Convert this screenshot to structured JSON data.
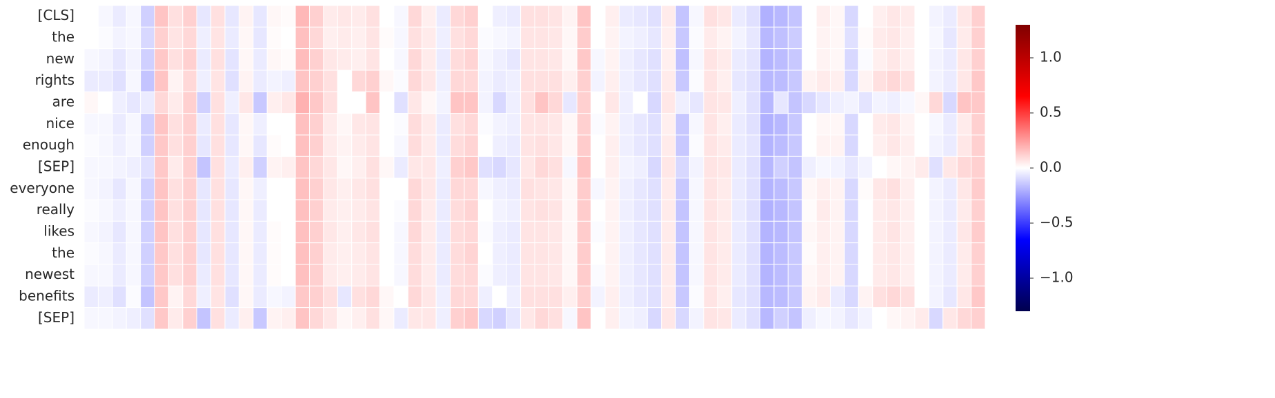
{
  "chart_data": {
    "type": "heatmap",
    "cmap": "seismic",
    "rows": [
      "[CLS]",
      "the",
      "new",
      "rights",
      "are",
      "nice",
      "enough",
      "[SEP]",
      "everyone",
      "really",
      "likes",
      "the",
      "newest",
      "benefits",
      "[SEP]"
    ],
    "values": [
      [
        0,
        -0.02,
        -0.05,
        -0.02,
        -0.12,
        0.15,
        0.08,
        0.12,
        -0.06,
        0.08,
        -0.06,
        0.03,
        -0.06,
        0.02,
        0.01,
        0.18,
        0.12,
        0.05,
        0.06,
        0.05,
        0.08,
        0,
        -0.02,
        0.1,
        0.04,
        -0.05,
        0.1,
        0.12,
        0,
        -0.04,
        -0.05,
        0.08,
        0.08,
        0.07,
        0.03,
        0.15,
        0,
        0.04,
        -0.05,
        -0.06,
        -0.08,
        0.05,
        -0.15,
        -0.02,
        0.08,
        0.06,
        -0.05,
        -0.08,
        -0.2,
        -0.18,
        -0.15,
        0,
        0.04,
        0.02,
        -0.1,
        0,
        0.04,
        0.06,
        0.05,
        0,
        -0.03,
        -0.05,
        0.06,
        0.12
      ],
      [
        0,
        -0.01,
        -0.03,
        -0.02,
        -0.1,
        0.12,
        0.07,
        0.1,
        -0.04,
        0.07,
        -0.05,
        0.02,
        -0.06,
        0.01,
        0,
        0.16,
        0.1,
        0.04,
        0.05,
        0.04,
        0.07,
        0.01,
        -0.02,
        0.08,
        0.05,
        -0.04,
        0.08,
        0.1,
        -0.01,
        -0.02,
        -0.03,
        0.07,
        0.07,
        0.06,
        0.02,
        0.13,
        0,
        0.03,
        -0.03,
        -0.04,
        -0.06,
        0.04,
        -0.14,
        -0.01,
        0.05,
        0.03,
        -0.03,
        -0.06,
        -0.18,
        -0.16,
        -0.13,
        0,
        0.03,
        0.02,
        -0.08,
        0.01,
        0.05,
        0.06,
        0.04,
        0,
        -0.02,
        -0.06,
        0.05,
        0.12
      ],
      [
        -0.02,
        -0.03,
        -0.06,
        -0.03,
        -0.12,
        0.14,
        0.08,
        0.12,
        -0.05,
        0.08,
        -0.07,
        0.02,
        -0.05,
        0.02,
        0.01,
        0.17,
        0.12,
        0.06,
        0.05,
        0.04,
        0.07,
        0,
        -0.02,
        0.1,
        0.05,
        -0.05,
        0.09,
        0.11,
        -0.02,
        -0.04,
        -0.06,
        0.07,
        0.07,
        0.06,
        0.02,
        0.14,
        -0.02,
        0.03,
        -0.04,
        -0.06,
        -0.08,
        0.04,
        -0.16,
        -0.02,
        0.07,
        0.05,
        -0.05,
        -0.07,
        -0.19,
        -0.17,
        -0.14,
        0,
        0.03,
        0.02,
        -0.1,
        -0.01,
        0.04,
        0.06,
        0.04,
        0,
        -0.03,
        -0.05,
        0.06,
        0.12
      ],
      [
        -0.05,
        -0.05,
        -0.08,
        -0.02,
        -0.15,
        0.15,
        0.03,
        0.1,
        -0.04,
        0.07,
        -0.08,
        0.03,
        -0.05,
        -0.03,
        -0.04,
        0.15,
        0.12,
        0.08,
        0,
        0.1,
        0.12,
        0.02,
        -0.01,
        0.1,
        0.06,
        -0.04,
        0.1,
        0.1,
        -0.03,
        -0.05,
        -0.04,
        0.08,
        0.08,
        0.08,
        0.04,
        0.12,
        -0.03,
        0.04,
        -0.04,
        -0.06,
        -0.08,
        0.05,
        -0.14,
        -0.01,
        0.07,
        0.04,
        -0.06,
        -0.08,
        -0.18,
        -0.17,
        -0.14,
        0.03,
        0.05,
        0.04,
        -0.1,
        0.03,
        0.08,
        0.1,
        0.08,
        0,
        -0.03,
        -0.05,
        0.06,
        0.14
      ],
      [
        0.02,
        0,
        -0.04,
        -0.06,
        -0.05,
        0.1,
        0.05,
        0.12,
        -0.12,
        0.08,
        -0.04,
        0.06,
        -0.14,
        0.04,
        0.06,
        0.2,
        0.14,
        0.08,
        0,
        0,
        0.15,
        0,
        -0.08,
        0.06,
        0.02,
        -0.03,
        0.15,
        0.15,
        -0.03,
        -0.1,
        -0.04,
        0.08,
        0.15,
        0.1,
        -0.06,
        0.12,
        0,
        0.06,
        -0.04,
        0,
        -0.1,
        0.06,
        -0.04,
        -0.06,
        0.07,
        0.06,
        -0.04,
        -0.08,
        -0.18,
        -0.06,
        -0.15,
        -0.1,
        -0.06,
        -0.04,
        -0.03,
        -0.07,
        -0.03,
        -0.04,
        -0.02,
        0.02,
        0.1,
        -0.1,
        0.15,
        0.14
      ],
      [
        -0.02,
        -0.02,
        -0.05,
        -0.02,
        -0.12,
        0.15,
        0.08,
        0.12,
        -0.05,
        0.08,
        -0.06,
        0.02,
        -0.04,
        0,
        0,
        0.16,
        0.12,
        0.05,
        0.02,
        0.06,
        0.07,
        0,
        -0.01,
        0.09,
        0.05,
        -0.05,
        0.08,
        0.1,
        -0.01,
        -0.03,
        -0.04,
        0.07,
        0.07,
        0.06,
        0.02,
        0.12,
        -0.01,
        0.03,
        -0.04,
        -0.06,
        -0.08,
        0.04,
        -0.14,
        -0.02,
        0.07,
        0.04,
        -0.05,
        -0.08,
        -0.2,
        -0.18,
        -0.14,
        0,
        0.02,
        0.02,
        -0.1,
        0,
        0.05,
        0.06,
        0.03,
        0,
        -0.02,
        -0.05,
        0.05,
        0.12
      ],
      [
        -0.01,
        -0.02,
        -0.04,
        -0.02,
        -0.12,
        0.14,
        0.08,
        0.12,
        -0.06,
        0.08,
        -0.06,
        0.02,
        -0.06,
        0.01,
        0,
        0.16,
        0.12,
        0.05,
        0.03,
        0.05,
        0.07,
        0,
        -0.02,
        0.09,
        0.05,
        -0.05,
        0.09,
        0.11,
        0,
        -0.04,
        -0.05,
        0.07,
        0.08,
        0.06,
        0.02,
        0.13,
        0,
        0.04,
        -0.04,
        -0.06,
        -0.08,
        0.05,
        -0.14,
        -0.01,
        0.07,
        0.05,
        -0.05,
        -0.07,
        -0.19,
        -0.17,
        -0.14,
        0,
        0.03,
        0.03,
        -0.1,
        0,
        0.04,
        0.06,
        0.04,
        0,
        -0.03,
        -0.05,
        0.06,
        0.12
      ],
      [
        -0.02,
        -0.02,
        -0.03,
        -0.04,
        -0.08,
        0.14,
        0.05,
        0.12,
        -0.15,
        0.08,
        -0.05,
        0.04,
        -0.12,
        0.03,
        0.04,
        0.15,
        0.1,
        0.06,
        0.02,
        0.04,
        0.08,
        0.02,
        -0.05,
        0.06,
        0.06,
        -0.04,
        0.12,
        0.14,
        -0.08,
        -0.1,
        -0.06,
        0.06,
        0.1,
        0.08,
        -0.02,
        0.15,
        0,
        0.04,
        -0.03,
        -0.04,
        -0.1,
        0.06,
        -0.1,
        -0.03,
        0.07,
        0.06,
        -0.05,
        -0.08,
        -0.18,
        -0.12,
        -0.15,
        -0.04,
        -0.02,
        -0.03,
        -0.06,
        -0.03,
        0,
        0.02,
        0.03,
        0.05,
        -0.08,
        0.06,
        0.1,
        0.12
      ],
      [
        -0.02,
        -0.03,
        -0.06,
        -0.02,
        -0.12,
        0.15,
        0.08,
        0.12,
        -0.06,
        0.08,
        -0.06,
        0.02,
        -0.04,
        0,
        0,
        0.16,
        0.12,
        0.06,
        0.04,
        0.06,
        0.08,
        0,
        0,
        0.1,
        0.06,
        -0.05,
        0.1,
        0.1,
        -0.02,
        -0.04,
        -0.05,
        0.08,
        0.07,
        0.06,
        0.02,
        0.13,
        -0.02,
        0.03,
        -0.04,
        -0.06,
        -0.08,
        0.05,
        -0.14,
        -0.02,
        0.07,
        0.05,
        -0.05,
        -0.08,
        -0.19,
        -0.17,
        -0.14,
        0.02,
        0.04,
        0.03,
        -0.1,
        0.01,
        0.06,
        0.08,
        0.04,
        0,
        -0.03,
        -0.05,
        0.06,
        0.13
      ],
      [
        -0.01,
        -0.02,
        -0.04,
        -0.02,
        -0.12,
        0.15,
        0.08,
        0.12,
        -0.06,
        0.08,
        -0.06,
        0.02,
        -0.05,
        0,
        0,
        0.16,
        0.12,
        0.05,
        0.04,
        0.05,
        0.07,
        0,
        -0.01,
        0.1,
        0.05,
        -0.05,
        0.09,
        0.11,
        0,
        -0.03,
        -0.04,
        0.07,
        0.08,
        0.07,
        0.02,
        0.13,
        0,
        0.03,
        -0.04,
        -0.06,
        -0.08,
        0.05,
        -0.15,
        -0.02,
        0.07,
        0.05,
        -0.05,
        -0.08,
        -0.2,
        -0.18,
        -0.15,
        0.01,
        0.05,
        0.03,
        -0.1,
        0,
        0.05,
        0.06,
        0.04,
        0,
        -0.03,
        -0.05,
        0.05,
        0.12
      ],
      [
        -0.02,
        -0.03,
        -0.06,
        -0.02,
        -0.12,
        0.15,
        0.08,
        0.12,
        -0.06,
        0.08,
        -0.06,
        0.02,
        -0.05,
        0.01,
        0,
        0.16,
        0.12,
        0.06,
        0.04,
        0.06,
        0.08,
        0,
        -0.02,
        0.1,
        0.05,
        -0.05,
        0.09,
        0.1,
        -0.01,
        -0.04,
        -0.05,
        0.07,
        0.07,
        0.06,
        0.02,
        0.13,
        -0.01,
        0.03,
        -0.04,
        -0.06,
        -0.08,
        0.05,
        -0.15,
        -0.02,
        0.07,
        0.05,
        -0.05,
        -0.08,
        -0.19,
        -0.18,
        -0.15,
        0.02,
        0.04,
        0.03,
        -0.1,
        0,
        0.05,
        0.07,
        0.04,
        0,
        -0.03,
        -0.05,
        0.06,
        0.13
      ],
      [
        -0.01,
        -0.02,
        -0.05,
        -0.02,
        -0.12,
        0.14,
        0.08,
        0.12,
        -0.06,
        0.08,
        -0.06,
        0.02,
        -0.05,
        0.01,
        0,
        0.16,
        0.12,
        0.05,
        0.04,
        0.05,
        0.07,
        0,
        -0.02,
        0.09,
        0.05,
        -0.05,
        0.09,
        0.11,
        0,
        -0.04,
        -0.05,
        0.07,
        0.07,
        0.06,
        0.02,
        0.13,
        0,
        0.03,
        -0.04,
        -0.06,
        -0.08,
        0.05,
        -0.15,
        -0.02,
        0.07,
        0.05,
        -0.05,
        -0.08,
        -0.19,
        -0.17,
        -0.14,
        0.01,
        0.04,
        0.03,
        -0.1,
        0,
        0.05,
        0.06,
        0.04,
        0,
        -0.03,
        -0.05,
        0.05,
        0.12
      ],
      [
        -0.02,
        -0.02,
        -0.05,
        -0.02,
        -0.12,
        0.14,
        0.08,
        0.12,
        -0.05,
        0.08,
        -0.06,
        0.02,
        -0.05,
        0.01,
        0,
        0.16,
        0.12,
        0.05,
        0.04,
        0.05,
        0.07,
        0,
        -0.02,
        0.09,
        0.05,
        -0.05,
        0.09,
        0.1,
        -0.01,
        -0.04,
        -0.05,
        0.07,
        0.07,
        0.06,
        0.02,
        0.13,
        -0.01,
        0.03,
        -0.04,
        -0.06,
        -0.08,
        0.05,
        -0.15,
        -0.02,
        0.07,
        0.05,
        -0.05,
        -0.08,
        -0.19,
        -0.17,
        -0.14,
        0.02,
        0.04,
        0.03,
        -0.1,
        0,
        0.05,
        0.06,
        0.04,
        0,
        -0.03,
        -0.05,
        0.05,
        0.12
      ],
      [
        -0.05,
        -0.04,
        -0.08,
        -0.01,
        -0.15,
        0.14,
        0.03,
        0.1,
        -0.04,
        0.07,
        -0.08,
        0.02,
        -0.05,
        -0.02,
        -0.03,
        0.14,
        0.12,
        0.08,
        -0.06,
        0.08,
        0.1,
        0.02,
        0,
        0.1,
        0.06,
        -0.04,
        0.1,
        0.1,
        -0.04,
        0,
        -0.04,
        0.08,
        0.08,
        0.08,
        0.04,
        0.12,
        -0.03,
        0.04,
        -0.04,
        -0.06,
        -0.08,
        0.05,
        -0.14,
        -0.01,
        0.07,
        0.04,
        -0.06,
        -0.08,
        -0.18,
        -0.17,
        -0.14,
        0.03,
        0.05,
        -0.05,
        -0.1,
        0.03,
        0.08,
        0.1,
        0.08,
        0,
        -0.03,
        -0.06,
        0.06,
        0.14
      ],
      [
        -0.02,
        -0.02,
        -0.03,
        -0.04,
        -0.08,
        0.14,
        0.05,
        0.12,
        -0.15,
        0.08,
        -0.05,
        0.04,
        -0.14,
        0.03,
        0.04,
        0.15,
        0.1,
        0.06,
        0.02,
        0.04,
        0.08,
        0.02,
        -0.05,
        0.06,
        0.06,
        -0.04,
        0.12,
        0.14,
        -0.1,
        -0.12,
        -0.06,
        0.06,
        0.1,
        0.08,
        -0.02,
        0.15,
        0,
        0.04,
        -0.03,
        -0.04,
        -0.1,
        0.06,
        -0.1,
        -0.03,
        0.07,
        0.06,
        -0.05,
        -0.08,
        -0.18,
        -0.12,
        -0.15,
        -0.04,
        -0.02,
        -0.03,
        -0.06,
        -0.03,
        0,
        0.02,
        0.03,
        0.05,
        -0.1,
        0.06,
        0.1,
        0.12
      ]
    ],
    "clim": [
      -1.3,
      1.3
    ],
    "colorbar_ticks": [
      {
        "value": -1.0,
        "label": "−1.0"
      },
      {
        "value": -0.5,
        "label": "−0.5"
      },
      {
        "value": 0,
        "label": "0.0"
      },
      {
        "value": 0.5,
        "label": "0.5"
      },
      {
        "value": 1.0,
        "label": "1.0"
      }
    ]
  }
}
